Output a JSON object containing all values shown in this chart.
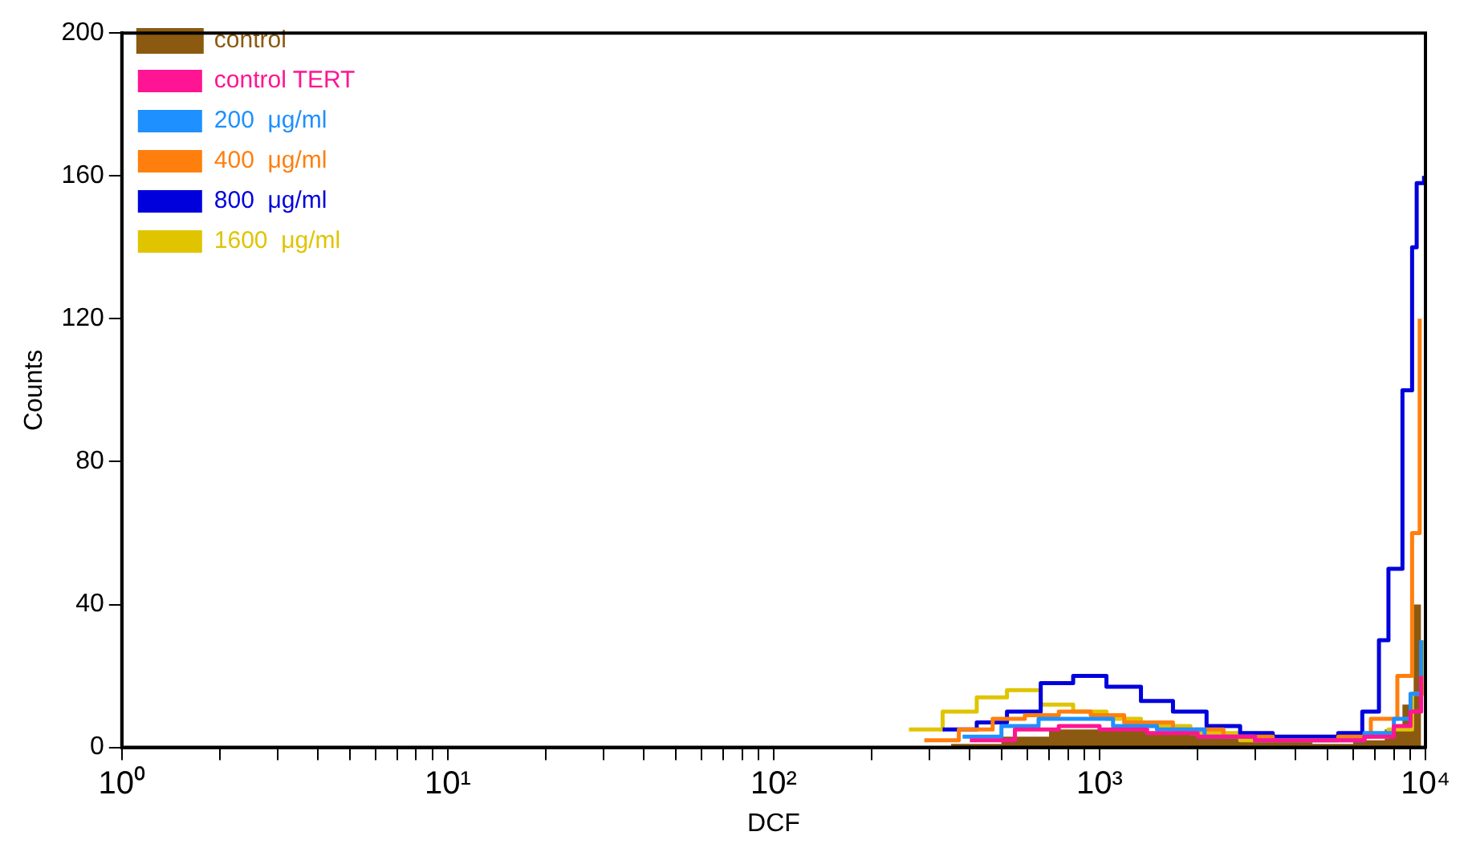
{
  "chart_data": {
    "type": "step",
    "xlabel": "DCF",
    "ylabel": "Counts",
    "log": "x",
    "grid": false,
    "legend": "top left",
    "xlim": [
      1,
      10000
    ],
    "ylim": [
      0,
      200
    ],
    "xticks": [
      {
        "value": 1,
        "label": "10⁰"
      },
      {
        "value": 2,
        "label": null
      },
      {
        "value": 3,
        "label": null
      },
      {
        "value": 4,
        "label": null
      },
      {
        "value": 5,
        "label": null
      },
      {
        "value": 6,
        "label": null
      },
      {
        "value": 7,
        "label": null
      },
      {
        "value": 8,
        "label": null
      },
      {
        "value": 9,
        "label": null
      },
      {
        "value": 10,
        "label": "10¹"
      },
      {
        "value": 20,
        "label": null
      },
      {
        "value": 30,
        "label": null
      },
      {
        "value": 40,
        "label": null
      },
      {
        "value": 50,
        "label": null
      },
      {
        "value": 60,
        "label": null
      },
      {
        "value": 70,
        "label": null
      },
      {
        "value": 80,
        "label": null
      },
      {
        "value": 90,
        "label": null
      },
      {
        "value": 100,
        "label": "10²"
      },
      {
        "value": 200,
        "label": null
      },
      {
        "value": 300,
        "label": null
      },
      {
        "value": 400,
        "label": null
      },
      {
        "value": 500,
        "label": null
      },
      {
        "value": 600,
        "label": null
      },
      {
        "value": 700,
        "label": null
      },
      {
        "value": 800,
        "label": null
      },
      {
        "value": 900,
        "label": null
      },
      {
        "value": 1000,
        "label": "10³"
      },
      {
        "value": 2000,
        "label": null
      },
      {
        "value": 3000,
        "label": null
      },
      {
        "value": 4000,
        "label": null
      },
      {
        "value": 5000,
        "label": null
      },
      {
        "value": 6000,
        "label": null
      },
      {
        "value": 7000,
        "label": null
      },
      {
        "value": 8000,
        "label": null
      },
      {
        "value": 9000,
        "label": null
      },
      {
        "value": 10000,
        "label": "10⁴"
      }
    ],
    "yticks": [
      0,
      40,
      80,
      120,
      160,
      200
    ],
    "series": [
      {
        "name": "control",
        "type": "area",
        "color": "#8b5a10",
        "x": [
          350,
          500,
          700,
          1000,
          1400,
          2000,
          3000,
          4500,
          6000,
          7500,
          8500,
          9200,
          9700
        ],
        "values": [
          1,
          3,
          5,
          5,
          4,
          3,
          2,
          1,
          2,
          5,
          12,
          40,
          70
        ]
      },
      {
        "name": "control TERT",
        "color": "#ff1493",
        "x": [
          400,
          550,
          750,
          1000,
          1400,
          2000,
          3000,
          4500,
          6500,
          8000,
          9000,
          9700
        ],
        "values": [
          2,
          5,
          6,
          5,
          4,
          3,
          2,
          2,
          3,
          6,
          10,
          20
        ]
      },
      {
        "name": "200  μg/ml",
        "color": "#1e90ff",
        "x": [
          380,
          500,
          650,
          850,
          1100,
          1500,
          2100,
          3000,
          4500,
          6500,
          8000,
          9000,
          9700
        ],
        "values": [
          3,
          6,
          8,
          8,
          6,
          5,
          3,
          2,
          2,
          4,
          8,
          15,
          30
        ]
      },
      {
        "name": "400  μg/ml",
        "color": "#ff7f0e",
        "x": [
          290,
          370,
          470,
          590,
          750,
          940,
          1190,
          1680,
          2400,
          3400,
          5400,
          6800,
          8200,
          9100,
          9600
        ],
        "values": [
          2,
          5,
          8,
          9,
          10,
          9,
          7,
          5,
          3,
          2,
          3,
          8,
          20,
          60,
          120
        ]
      },
      {
        "name": "800  μg/ml",
        "color": "#0000dd",
        "x": [
          330,
          420,
          520,
          660,
          830,
          1050,
          1340,
          1680,
          2130,
          2700,
          3400,
          4300,
          5400,
          6400,
          7200,
          7700,
          8500,
          9100,
          9400,
          9900
        ],
        "values": [
          5,
          7,
          10,
          18,
          20,
          17,
          13,
          10,
          6,
          4,
          3,
          3,
          4,
          10,
          30,
          50,
          100,
          140,
          158,
          160
        ]
      },
      {
        "name": "1600  μg/ml",
        "color": "#e0c400",
        "x": [
          260,
          330,
          420,
          520,
          660,
          830,
          1050,
          1340,
          1900,
          2700,
          3400,
          5400,
          7700,
          9100,
          9900
        ],
        "values": [
          5,
          10,
          14,
          16,
          12,
          10,
          8,
          6,
          4,
          2,
          3,
          3,
          5,
          15,
          30
        ]
      }
    ]
  }
}
